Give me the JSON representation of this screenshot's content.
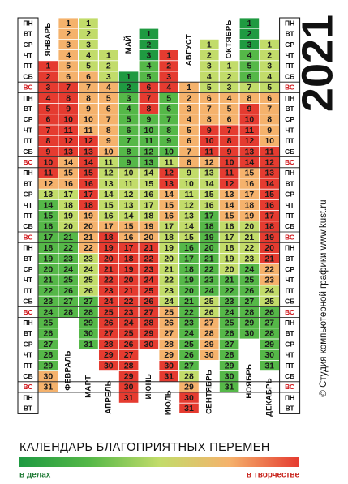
{
  "year": "2021",
  "weekdays": [
    "ПН",
    "ВТ",
    "СР",
    "ЧТ",
    "ПТ",
    "СБ",
    "ВС"
  ],
  "title": "КАЛЕНДАРЬ БЛАГОПРИЯТНЫХ ПЕРЕМЕН",
  "credit": "© Студия компьютерной графики www.kust.ru",
  "scale": {
    "colors": [
      "#1f9a41",
      "#55b848",
      "#c2dc6a",
      "#f5b26c",
      "#e53b30"
    ],
    "low_label": "в делах",
    "high_label": "в творчестве"
  },
  "months": [
    {
      "name": "ЯНВАРЬ",
      "days": [
        1,
        2,
        3,
        4,
        5,
        6,
        7,
        8,
        9,
        10,
        11,
        12,
        13,
        14,
        15,
        16,
        17,
        18,
        19,
        20,
        21,
        22,
        23,
        24,
        25,
        26,
        27,
        28,
        29,
        30,
        31
      ],
      "levels": [
        4,
        4,
        4,
        4,
        4,
        4,
        4,
        4,
        4,
        4,
        4,
        3,
        2,
        1,
        1,
        1,
        1,
        1,
        1,
        1,
        1,
        1,
        1,
        1,
        1,
        1,
        1,
        1,
        1,
        3,
        3
      ]
    },
    {
      "name": "ФЕВРАЛЬ",
      "days": [
        1,
        2,
        3,
        4,
        5,
        6,
        7,
        8,
        9,
        10,
        11,
        12,
        13,
        14,
        15,
        16,
        17,
        18,
        19,
        20,
        21,
        22,
        23,
        24,
        25,
        26,
        27,
        28
      ],
      "levels": [
        3,
        3,
        3,
        3,
        3,
        3,
        4,
        4,
        4,
        4,
        4,
        4,
        4,
        3,
        3,
        3,
        2,
        2,
        2,
        2,
        1,
        1,
        1,
        1,
        1,
        1,
        1,
        1
      ]
    },
    {
      "name": "МАРТ",
      "days": [
        1,
        2,
        3,
        4,
        5,
        6,
        7,
        8,
        9,
        10,
        11,
        12,
        13,
        14,
        15,
        16,
        17,
        18,
        19,
        20,
        21,
        22,
        23,
        24,
        25,
        26,
        27,
        28,
        29,
        30,
        31
      ],
      "levels": [
        2,
        2,
        2,
        2,
        2,
        3,
        3,
        3,
        3,
        3,
        3,
        4,
        4,
        4,
        4,
        4,
        4,
        4,
        3,
        3,
        3,
        3,
        2,
        2,
        2,
        2,
        1,
        1,
        1,
        1,
        1
      ]
    },
    {
      "name": "АПРЕЛЬ",
      "days": [
        1,
        2,
        3,
        4,
        5,
        6,
        7,
        8,
        9,
        10,
        11,
        12,
        13,
        14,
        15,
        16,
        17,
        18,
        19,
        20,
        21,
        22,
        23,
        24,
        25,
        26,
        27,
        28,
        29,
        30
      ],
      "levels": [
        2,
        2,
        2,
        3,
        3,
        3,
        3,
        3,
        3,
        3,
        2,
        2,
        2,
        2,
        2,
        2,
        3,
        4,
        4,
        4,
        4,
        4,
        4,
        4,
        4,
        4,
        4,
        4,
        4,
        4
      ]
    },
    {
      "name": "МАЙ",
      "days": [
        1,
        2,
        3,
        4,
        5,
        6,
        7,
        8,
        9,
        10,
        11,
        12,
        13,
        14,
        15,
        16,
        17,
        18,
        19,
        20,
        21,
        22,
        23,
        24,
        25,
        26,
        27,
        28,
        29,
        30,
        31
      ],
      "levels": [
        0,
        0,
        1,
        1,
        1,
        1,
        1,
        1,
        1,
        2,
        2,
        2,
        2,
        2,
        3,
        3,
        4,
        4,
        4,
        4,
        4,
        4,
        4,
        4,
        4,
        4,
        4,
        4,
        4,
        4,
        4
      ]
    },
    {
      "name": "ИЮНЬ",
      "days": [
        1,
        2,
        3,
        4,
        5,
        6,
        7,
        8,
        9,
        10,
        11,
        12,
        13,
        14,
        15,
        16,
        17,
        18,
        19,
        20,
        21,
        22,
        23,
        24,
        25,
        26,
        27,
        28,
        29,
        30
      ],
      "levels": [
        0,
        0,
        0,
        1,
        1,
        4,
        4,
        4,
        1,
        1,
        1,
        1,
        1,
        2,
        2,
        2,
        2,
        2,
        3,
        3,
        4,
        4,
        4,
        4,
        4,
        4,
        4,
        4,
        4,
        4
      ]
    },
    {
      "name": "ИЮЛЬ",
      "days": [
        1,
        2,
        3,
        4,
        5,
        6,
        7,
        8,
        9,
        10,
        11,
        12,
        13,
        14,
        15,
        16,
        17,
        18,
        19,
        20,
        21,
        22,
        23,
        24,
        25,
        26,
        27,
        28,
        29,
        30,
        31
      ],
      "levels": [
        4,
        4,
        4,
        4,
        1,
        1,
        1,
        1,
        1,
        1,
        2,
        4,
        4,
        3,
        3,
        3,
        2,
        2,
        2,
        2,
        2,
        2,
        2,
        2,
        3,
        3,
        3,
        3,
        3,
        4,
        4
      ]
    },
    {
      "name": "АВГУСТ",
      "days": [
        1,
        2,
        3,
        4,
        5,
        6,
        7,
        8,
        9,
        10,
        11,
        12,
        13,
        14,
        15,
        16,
        17,
        18,
        19,
        20,
        21,
        22,
        23,
        24,
        25,
        26,
        27,
        28,
        29,
        30,
        31
      ],
      "levels": [
        3,
        3,
        3,
        3,
        3,
        3,
        3,
        3,
        2,
        2,
        2,
        2,
        2,
        2,
        2,
        1,
        1,
        1,
        1,
        1,
        1,
        1,
        1,
        1,
        1,
        1,
        1,
        2,
        3,
        4,
        4
      ]
    },
    {
      "name": "СЕНТЯБРЬ",
      "days": [
        1,
        2,
        3,
        4,
        5,
        6,
        7,
        8,
        9,
        10,
        11,
        12,
        13,
        14,
        15,
        16,
        17,
        18,
        19,
        20,
        21,
        22,
        23,
        24,
        25,
        26,
        27,
        28,
        29,
        30
      ],
      "levels": [
        2,
        2,
        2,
        2,
        2,
        3,
        3,
        3,
        4,
        4,
        4,
        3,
        2,
        2,
        2,
        2,
        1,
        1,
        1,
        1,
        1,
        1,
        1,
        1,
        2,
        2,
        3,
        3,
        3,
        3
      ]
    },
    {
      "name": "ОКТЯБРЬ",
      "days": [
        1,
        2,
        3,
        4,
        5,
        6,
        7,
        8,
        9,
        10,
        11,
        12,
        13,
        14,
        15,
        16,
        17,
        18,
        19,
        20,
        21,
        22,
        23,
        24,
        25,
        26,
        27,
        28,
        29,
        30,
        31
      ],
      "levels": [
        2,
        2,
        2,
        3,
        3,
        3,
        4,
        4,
        4,
        4,
        4,
        4,
        3,
        3,
        3,
        2,
        2,
        2,
        2,
        2,
        1,
        1,
        1,
        1,
        1,
        1,
        1,
        1,
        1,
        1,
        1
      ]
    },
    {
      "name": "НОЯБРЬ",
      "days": [
        1,
        2,
        3,
        4,
        5,
        6,
        7,
        8,
        9,
        10,
        11,
        12,
        13,
        14,
        15,
        16,
        17,
        18,
        19,
        20,
        21,
        22,
        23,
        24,
        25,
        26,
        27,
        28,
        29,
        30
      ],
      "levels": [
        0,
        0,
        0,
        1,
        1,
        1,
        2,
        3,
        4,
        4,
        4,
        4,
        4,
        4,
        3,
        3,
        3,
        3,
        3,
        2,
        2,
        2,
        2,
        1,
        1,
        1,
        1,
        1,
        1,
        1
      ]
    },
    {
      "name": "ДЕКАБРЬ",
      "days": [
        1,
        2,
        3,
        4,
        5,
        6,
        7,
        8,
        9,
        10,
        11,
        12,
        13,
        14,
        15,
        16,
        17,
        18,
        19,
        20,
        21,
        22,
        23,
        24,
        25,
        26,
        27,
        28,
        29,
        30,
        31
      ],
      "levels": [
        2,
        2,
        2,
        2,
        2,
        3,
        3,
        3,
        3,
        3,
        4,
        4,
        4,
        4,
        4,
        4,
        4,
        4,
        4,
        4,
        4,
        3,
        3,
        2,
        2,
        1,
        1,
        1,
        1,
        1,
        1
      ]
    }
  ]
}
